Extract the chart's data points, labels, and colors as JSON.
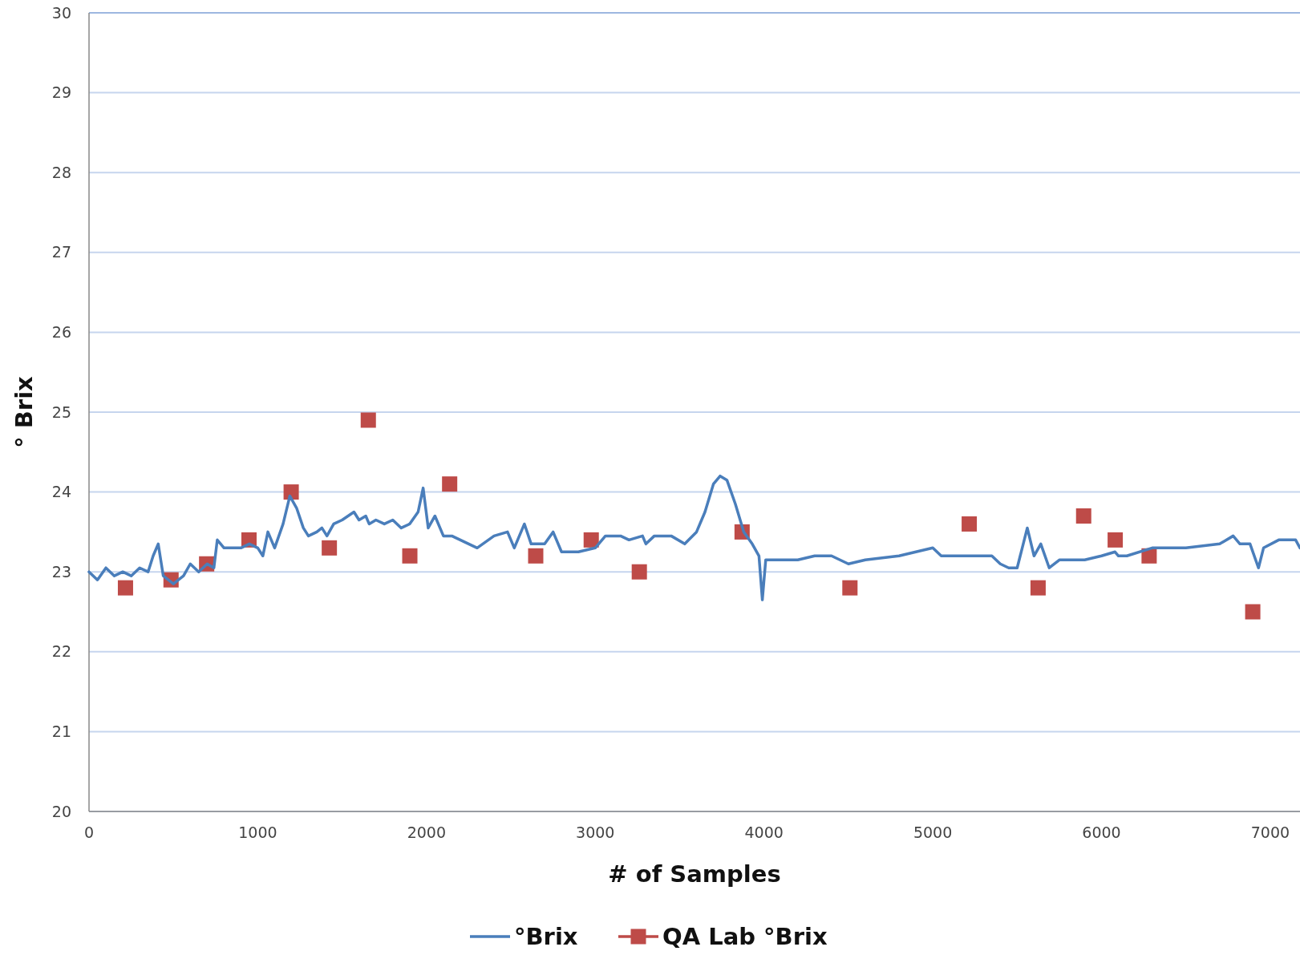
{
  "chart_data": {
    "type": "line",
    "xlabel": "# of Samples",
    "ylabel": "° Brix",
    "xlim": [
      0,
      7176
    ],
    "xticks": [
      0,
      1000,
      2000,
      3000,
      4000,
      5000,
      6000,
      7000
    ],
    "ylim": [
      20,
      30
    ],
    "yticks": [
      20,
      21,
      22,
      23,
      24,
      25,
      26,
      27,
      28,
      29,
      30
    ],
    "grid": "y",
    "legend": "bottom",
    "series": [
      {
        "name": "°Brix",
        "color": "#4a7ebb",
        "marker": "none",
        "x": [
          0,
          50,
          100,
          150,
          200,
          250,
          300,
          350,
          380,
          410,
          440,
          500,
          560,
          600,
          650,
          700,
          740,
          760,
          800,
          850,
          900,
          950,
          1000,
          1030,
          1060,
          1100,
          1150,
          1190,
          1230,
          1270,
          1300,
          1350,
          1380,
          1410,
          1450,
          1500,
          1570,
          1600,
          1640,
          1660,
          1700,
          1750,
          1800,
          1850,
          1900,
          1950,
          1980,
          2010,
          2050,
          2100,
          2150,
          2200,
          2300,
          2400,
          2480,
          2520,
          2580,
          2620,
          2700,
          2750,
          2800,
          2900,
          3000,
          3060,
          3150,
          3200,
          3280,
          3300,
          3350,
          3450,
          3530,
          3600,
          3650,
          3700,
          3740,
          3780,
          3830,
          3880,
          3930,
          3970,
          3990,
          4010,
          4100,
          4200,
          4300,
          4400,
          4500,
          4600,
          4800,
          4900,
          5000,
          5050,
          5200,
          5350,
          5400,
          5450,
          5500,
          5530,
          5560,
          5600,
          5640,
          5690,
          5750,
          5900,
          6000,
          6080,
          6100,
          6150,
          6300,
          6500,
          6700,
          6780,
          6820,
          6880,
          6930,
          6960,
          7050,
          7100,
          7150,
          7176
        ],
        "values": [
          23.0,
          22.9,
          23.05,
          22.95,
          23.0,
          22.95,
          23.05,
          23.0,
          23.2,
          23.35,
          22.95,
          22.85,
          22.95,
          23.1,
          23.0,
          23.1,
          23.05,
          23.4,
          23.3,
          23.3,
          23.3,
          23.35,
          23.3,
          23.2,
          23.5,
          23.3,
          23.6,
          23.95,
          23.8,
          23.55,
          23.45,
          23.5,
          23.55,
          23.45,
          23.6,
          23.65,
          23.75,
          23.65,
          23.7,
          23.6,
          23.65,
          23.6,
          23.65,
          23.55,
          23.6,
          23.75,
          24.05,
          23.55,
          23.7,
          23.45,
          23.45,
          23.4,
          23.3,
          23.45,
          23.5,
          23.3,
          23.6,
          23.35,
          23.35,
          23.5,
          23.25,
          23.25,
          23.3,
          23.45,
          23.45,
          23.4,
          23.45,
          23.35,
          23.45,
          23.45,
          23.35,
          23.5,
          23.75,
          24.1,
          24.2,
          24.15,
          23.85,
          23.5,
          23.35,
          23.2,
          22.65,
          23.15,
          23.15,
          23.15,
          23.2,
          23.2,
          23.1,
          23.15,
          23.2,
          23.25,
          23.3,
          23.2,
          23.2,
          23.2,
          23.1,
          23.05,
          23.05,
          23.3,
          23.55,
          23.2,
          23.35,
          23.05,
          23.15,
          23.15,
          23.2,
          23.25,
          23.2,
          23.2,
          23.3,
          23.3,
          23.35,
          23.45,
          23.35,
          23.35,
          23.05,
          23.3,
          23.4,
          23.4,
          23.4,
          23.3
        ]
      },
      {
        "name": "QA Lab °Brix",
        "type": "scatter",
        "color": "#be4b48",
        "marker": "square",
        "x": [
          216,
          486,
          697,
          948,
          1198,
          1424,
          1655,
          1901,
          2137,
          2647,
          2976,
          3261,
          3870,
          4509,
          5216,
          5624,
          5894,
          6081,
          6282,
          6896
        ],
        "values": [
          22.8,
          22.9,
          23.1,
          23.4,
          24.0,
          23.3,
          24.9,
          23.2,
          24.1,
          23.2,
          23.4,
          23.0,
          23.5,
          22.8,
          23.6,
          22.8,
          23.7,
          23.4,
          23.2,
          22.5
        ]
      }
    ]
  }
}
